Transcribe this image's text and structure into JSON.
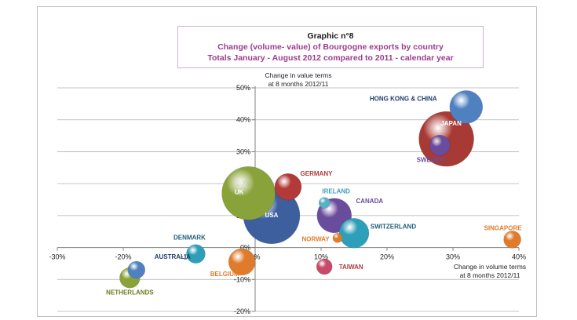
{
  "chart_data": {
    "type": "scatter",
    "title": "Graphic n°8",
    "subtitle_lines": [
      "Change (volume- value) of Bourgogne exports by country",
      "Totals January - August 2012  compared to 2011 - calendar year"
    ],
    "xlabel_lines": [
      "Change in volume terms",
      "at 8 months 2012/11"
    ],
    "ylabel_lines": [
      "Change in value terms",
      "at 8 months 2012/11"
    ],
    "xlim": [
      -30,
      40
    ],
    "ylim": [
      -20,
      50
    ],
    "x_ticks": [
      {
        "value": -30,
        "label": "-30%"
      },
      {
        "value": -20,
        "label": "-20%"
      },
      {
        "value": -10,
        "label": "-10%"
      },
      {
        "value": 0,
        "label": "0%"
      },
      {
        "value": 10,
        "label": "10%"
      },
      {
        "value": 20,
        "label": "20%"
      },
      {
        "value": 30,
        "label": "30%"
      },
      {
        "value": 40,
        "label": "40%"
      }
    ],
    "y_ticks": [
      {
        "value": -20,
        "label": "-20%"
      },
      {
        "value": -10,
        "label": "-10%"
      },
      {
        "value": 0,
        "label": "0%"
      },
      {
        "value": 10,
        "label": "10%"
      },
      {
        "value": 20,
        "label": "20%"
      },
      {
        "value": 30,
        "label": "30%"
      },
      {
        "value": 40,
        "label": "40%"
      },
      {
        "value": 50,
        "label": "50%"
      }
    ],
    "grid": "horizontal",
    "bubbles": [
      {
        "name": "USA",
        "x": 2.5,
        "y": 10,
        "size": 36,
        "color": "#3d5f9e",
        "label_color": "#ffffff",
        "label_dx": 0,
        "label_dy": 2
      },
      {
        "name": "UK",
        "x": -1,
        "y": 17,
        "size": 34,
        "color": "#8aa23a",
        "label_color": "#ffffff",
        "label_dx": -12,
        "label_dy": 1
      },
      {
        "name": "JAPAN",
        "x": 29,
        "y": 34,
        "size": 35,
        "color": "#a83a35",
        "label_color": "#ffffff",
        "label_dx": 6,
        "label_dy": -17
      },
      {
        "name": "HONG KONG & CHINA",
        "x": 32,
        "y": 44,
        "size": 21,
        "color": "#4f80c0",
        "label_color": "#1f3d6e",
        "label_dx": -80,
        "label_dy": -8
      },
      {
        "name": "SWEDEN",
        "x": 28,
        "y": 32,
        "size": 13,
        "color": "#6a4c9c",
        "label_color": "#6a4c9c",
        "label_dx": -12,
        "label_dy": 21
      },
      {
        "name": "GERMANY",
        "x": 5,
        "y": 19,
        "size": 17,
        "color": "#b23a38",
        "label_color": "#b23a38",
        "label_dx": 36,
        "label_dy": -14
      },
      {
        "name": "CANADA",
        "x": 12,
        "y": 10,
        "size": 22,
        "color": "#6a4c9c",
        "label_color": "#6a4c9c",
        "label_dx": 45,
        "label_dy": -16
      },
      {
        "name": "IRELAND",
        "x": 10.5,
        "y": 14,
        "size": 7,
        "color": "#58b0c8",
        "label_color": "#3f9fbc",
        "label_dx": 15,
        "label_dy": -12
      },
      {
        "name": "SWITZERLAND",
        "x": 15,
        "y": 4.5,
        "size": 19,
        "color": "#2e9fb8",
        "label_color": "#1f5e7a",
        "label_dx": 50,
        "label_dy": -6
      },
      {
        "name": "NORWAY",
        "x": 12.5,
        "y": 3,
        "size": 6,
        "color": "#e07b2c",
        "label_color": "#e07b2c",
        "label_dx": -28,
        "label_dy": 4
      },
      {
        "name": "SINGAPORE",
        "x": 39,
        "y": 2.5,
        "size": 11,
        "color": "#e07b2c",
        "label_color": "#e07b2c",
        "label_dx": -12,
        "label_dy": -12
      },
      {
        "name": "DENMARK",
        "x": -9,
        "y": -2,
        "size": 12,
        "color": "#2e9fb8",
        "label_color": "#1f5e7a",
        "label_dx": -8,
        "label_dy": -18
      },
      {
        "name": "BELGIUM",
        "x": -2,
        "y": -4.5,
        "size": 17,
        "color": "#e07b2c",
        "label_color": "#e07b2c",
        "label_dx": -22,
        "label_dy": 18
      },
      {
        "name": "AUSTRALIA",
        "x": -18,
        "y": -7,
        "size": 11,
        "color": "#4f80c0",
        "label_color": "#1f3d6e",
        "label_dx": 46,
        "label_dy": -14
      },
      {
        "name": "NETHERLANDS",
        "x": -19,
        "y": -9.5,
        "size": 13,
        "color": "#8aa23a",
        "label_color": "#6a7e20",
        "label_dx": 0,
        "label_dy": 21
      },
      {
        "name": "TAIWAN",
        "x": 10.5,
        "y": -6,
        "size": 10,
        "color": "#c84a6a",
        "label_color": "#b23a38",
        "label_dx": 34,
        "label_dy": 3
      }
    ]
  }
}
